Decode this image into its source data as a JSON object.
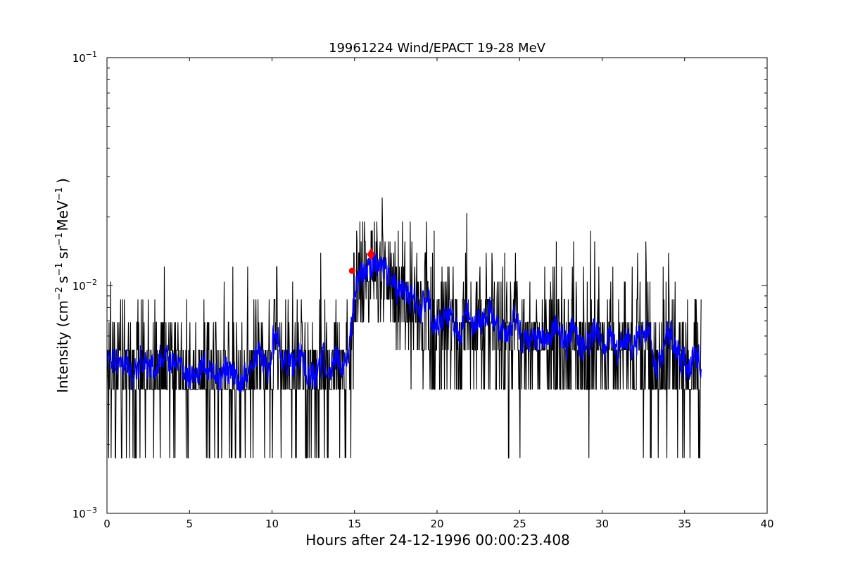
{
  "chart_data": {
    "type": "line",
    "title": "19961224 Wind/EPACT 19-28 MeV",
    "xlabel": "Hours after 24-12-1996 00:00:23.408",
    "ylabel": "Intensity (cm⁻² s⁻¹ sr⁻¹ MeV⁻¹ )",
    "ylabel_parts": {
      "prefix": "Intensity (cm",
      "cm_exp": "−2",
      "s": "s",
      "s_exp": "−1",
      "sr": "sr",
      "sr_exp": "−1",
      "mev": "MeV",
      "mev_exp": "−1",
      "suffix": ")"
    },
    "xlim": [
      0,
      40
    ],
    "ylim": [
      0.001,
      0.1
    ],
    "yscale": "log",
    "grid": false,
    "x_ticks": [
      0,
      5,
      10,
      15,
      20,
      25,
      30,
      35,
      40
    ],
    "x_tick_labels": [
      "0",
      "5",
      "10",
      "15",
      "20",
      "25",
      "30",
      "35",
      "40"
    ],
    "y_major_ticks": [
      {
        "value": 0.1,
        "base": "10",
        "exp": "−1"
      },
      {
        "value": 0.01,
        "base": "10",
        "exp": "−2"
      },
      {
        "value": 0.001,
        "base": "10",
        "exp": "−3"
      }
    ],
    "series": [
      {
        "role": "raw",
        "color": "#000000",
        "x_range": [
          0,
          36
        ],
        "sample_step_hours": 0.025,
        "levels": [
          0.00175,
          0.0035,
          0.0052,
          0.0069,
          0.0087,
          0.0104,
          0.0121,
          0.0139,
          0.0156,
          0.0174,
          0.0191,
          0.0208,
          0.0226,
          0.0243
        ],
        "baseline_pre_onset": 0.0042,
        "onset_hour": 14.8,
        "peak_hour": 16.5,
        "peak_level": 0.0115,
        "decay_level": 0.0065,
        "end_level": 0.0045,
        "end_hour": 36.0
      },
      {
        "role": "smoothed",
        "color": "#0000ff",
        "x_range": [
          0,
          36
        ],
        "baseline_pre_onset": 0.0042,
        "onset_hour": 14.8,
        "peak_level": 0.0105,
        "end_level": 0.0045
      }
    ],
    "markers": [
      {
        "x": 14.85,
        "y": 0.0116,
        "shape": "circle",
        "color": "#ff0000"
      },
      {
        "x": 16.0,
        "y": 0.0137,
        "shape": "diamond",
        "color": "#ff0000"
      }
    ],
    "colors": {
      "background": "#ffffff",
      "axes": "#000000",
      "raw_line": "#000000",
      "smoothed_line": "#0000ff",
      "marker": "#ff0000"
    }
  }
}
